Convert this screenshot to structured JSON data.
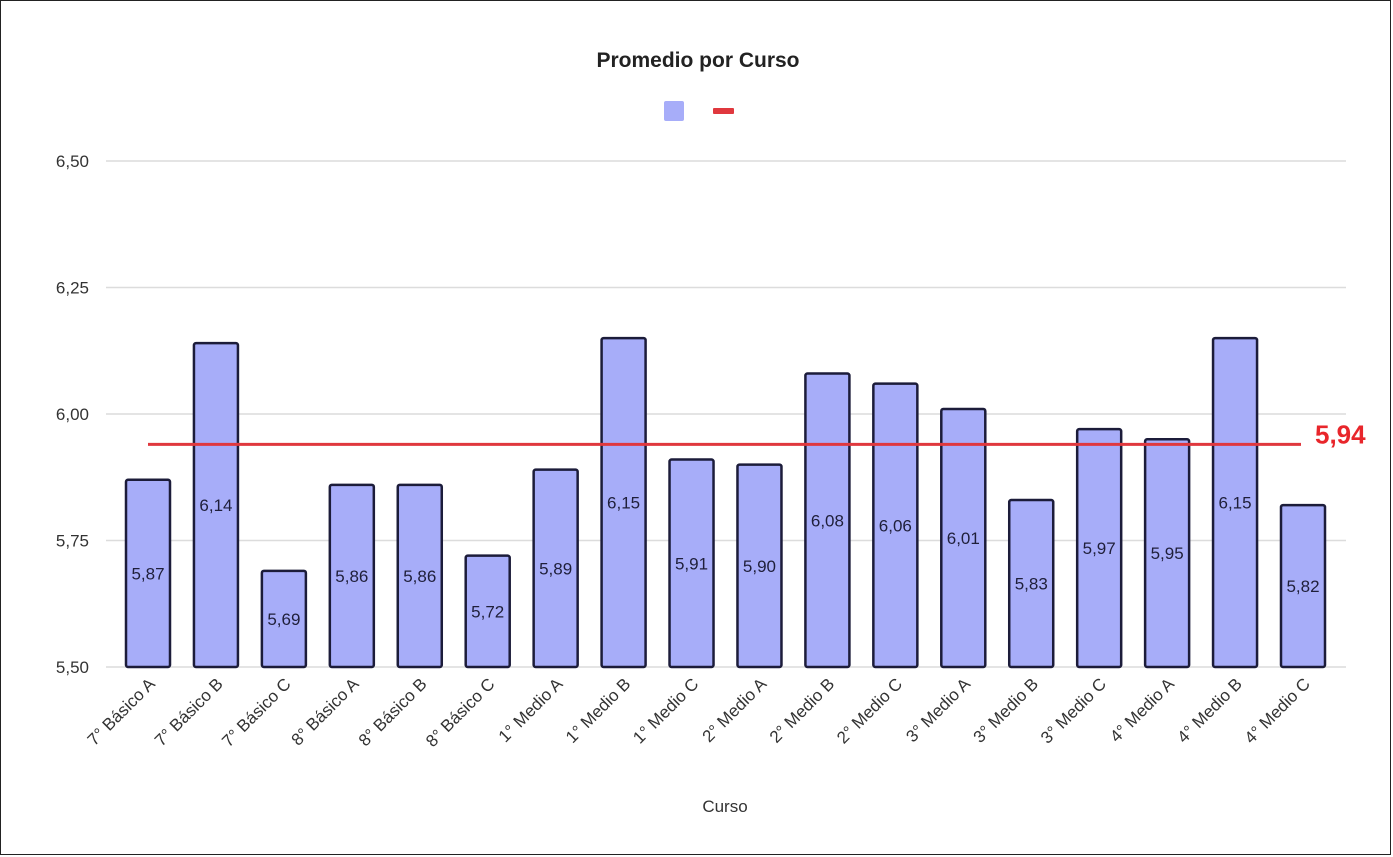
{
  "chart_data": {
    "type": "bar",
    "title": "Promedio por Curso",
    "xlabel": "Curso",
    "ylabel": "",
    "ylim": [
      5.5,
      6.5
    ],
    "yticks": [
      "5,50",
      "5,75",
      "6,00",
      "6,25",
      "6,50"
    ],
    "ytick_values": [
      5.5,
      5.75,
      6.0,
      6.25,
      6.5
    ],
    "grid": true,
    "legend_position": "top-center",
    "categories": [
      "7° Básico A",
      "7° Básico B",
      "7° Básico C",
      "8° Básico A",
      "8° Básico B",
      "8° Básico C",
      "1° Medio A",
      "1° Medio B",
      "1° Medio C",
      "2° Medio A",
      "2° Medio B",
      "2° Medio C",
      "3° Medio A",
      "3° Medio B",
      "3° Medio C",
      "4° Medio A",
      "4° Medio B",
      "4° Medio C"
    ],
    "values": [
      5.87,
      6.14,
      5.69,
      5.86,
      5.86,
      5.72,
      5.89,
      6.15,
      5.91,
      5.9,
      6.08,
      6.06,
      6.01,
      5.83,
      5.97,
      5.95,
      6.15,
      5.82
    ],
    "data_labels": [
      "5,87",
      "6,14",
      "5,69",
      "5,86",
      "5,86",
      "5,72",
      "5,89",
      "6,15",
      "5,91",
      "5,90",
      "6,08",
      "6,06",
      "6,01",
      "5,83",
      "5,97",
      "5,95",
      "6,15",
      "5,82"
    ],
    "average": 5.94,
    "average_label": "5,94",
    "colors": {
      "bar_fill": "#a7adf9",
      "bar_stroke": "#1c1c3a",
      "average_line": "#e0383e",
      "average_label": "#e8262b",
      "gridline": "#dcdcdc"
    }
  }
}
